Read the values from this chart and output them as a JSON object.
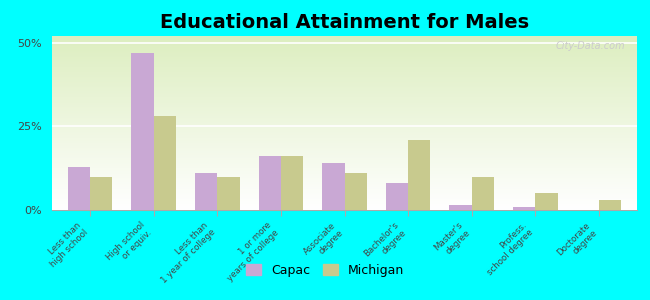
{
  "title": "Educational Attainment for Males",
  "categories": [
    "Less than\nhigh school",
    "High school\nor equiv.",
    "Less than\n1 year of college",
    "1 or more\nyears of college",
    "Associate\ndegree",
    "Bachelor's\ndegree",
    "Master's\ndegree",
    "Profess.\nschool degree",
    "Doctorate\ndegree"
  ],
  "capac_values": [
    13,
    47,
    11,
    16,
    14,
    8,
    1.5,
    1,
    0
  ],
  "michigan_values": [
    10,
    28,
    10,
    16,
    11,
    21,
    10,
    5,
    3
  ],
  "capac_color": "#c9a8d4",
  "michigan_color": "#c8ca8e",
  "background_color": "#00ffff",
  "ylim": [
    0,
    52
  ],
  "yticks": [
    0,
    25,
    50
  ],
  "ytick_labels": [
    "0%",
    "25%",
    "50%"
  ],
  "title_fontsize": 14,
  "legend_labels": [
    "Capac",
    "Michigan"
  ],
  "watermark": "City-Data.com"
}
